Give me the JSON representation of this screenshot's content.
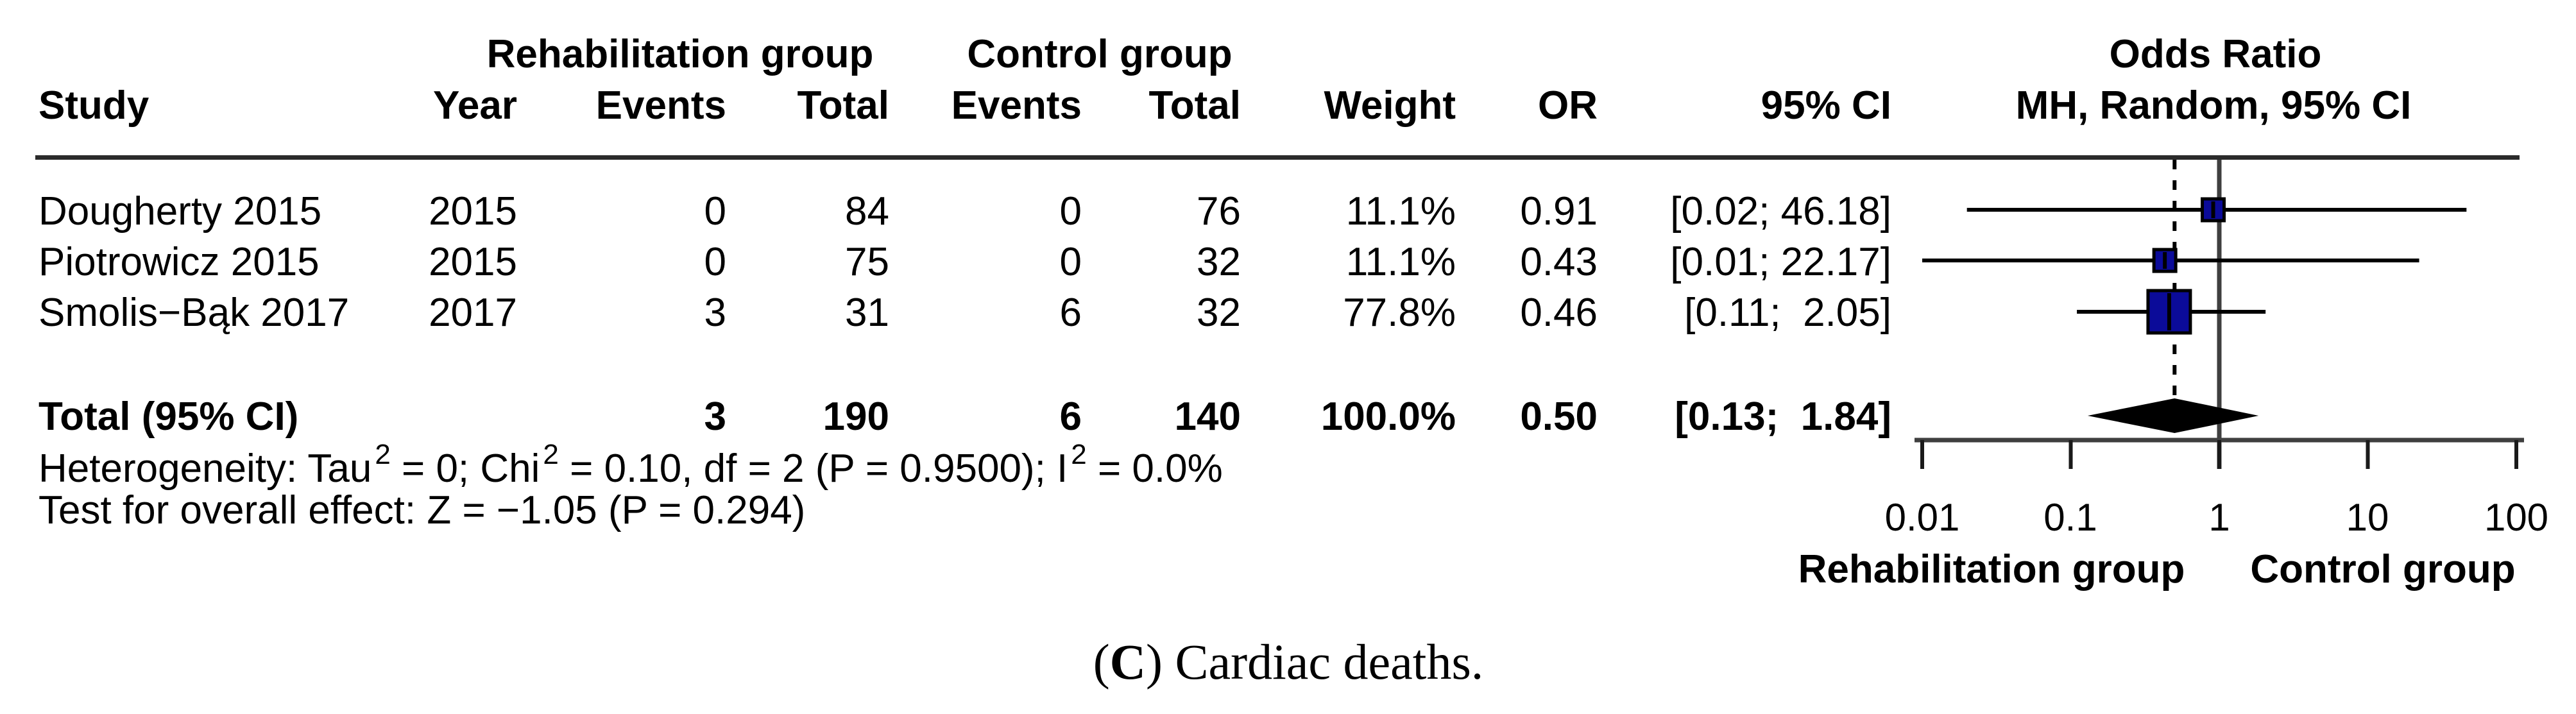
{
  "chart_data": {
    "type": "forest",
    "effect_measure": "Odds Ratio",
    "model_label": "MH, Random, 95% CI",
    "x_axis": {
      "scale": "log",
      "ticks": [
        0.01,
        0.1,
        1,
        10,
        100
      ],
      "tick_labels": [
        "0.01",
        "0.1",
        "1",
        "10",
        "100"
      ],
      "label_left": "Rehabilitation group",
      "label_right": "Control group"
    },
    "null_value": 1,
    "studies": [
      {
        "name": "Dougherty 2015",
        "or": 0.91,
        "ci_low": 0.02,
        "ci_high": 46.18,
        "weight_pct": 11.1
      },
      {
        "name": "Piotrowicz 2015",
        "or": 0.43,
        "ci_low": 0.01,
        "ci_high": 22.17,
        "weight_pct": 11.1
      },
      {
        "name": "Smolis−Bąk 2017",
        "or": 0.46,
        "ci_low": 0.11,
        "ci_high": 2.05,
        "weight_pct": 77.8
      }
    ],
    "pooled": {
      "or": 0.5,
      "ci_low": 0.13,
      "ci_high": 1.84,
      "weight_pct": 100.0
    },
    "square_color": "#0b0b99",
    "diamond_color": "#000000",
    "line_gray": "#3f3f3f"
  },
  "table": {
    "group_headers": {
      "rehab": "Rehabilitation group",
      "control": "Control group"
    },
    "headers": {
      "study": "Study",
      "year": "Year",
      "events": "Events",
      "total": "Total",
      "weight": "Weight",
      "or": "OR",
      "ci": "95% CI",
      "mh": "MH, Random, 95% CI"
    },
    "rows": [
      {
        "study": "Dougherty 2015",
        "year": "2015",
        "events_rehab": "0",
        "total_rehab": "84",
        "events_control": "0",
        "total_control": "76",
        "weight": "11.1%",
        "or": "0.91",
        "ci": "[0.02; 46.18]"
      },
      {
        "study": "Piotrowicz 2015",
        "year": "2015",
        "events_rehab": "0",
        "total_rehab": "75",
        "events_control": "0",
        "total_control": "32",
        "weight": "11.1%",
        "or": "0.43",
        "ci": "[0.01; 22.17]"
      },
      {
        "study": "Smolis−Bąk 2017",
        "year": "2017",
        "events_rehab": "3",
        "total_rehab": "31",
        "events_control": "6",
        "total_control": "32",
        "weight": "77.8%",
        "or": "0.46",
        "ci": "[0.11;  2.05]"
      }
    ],
    "total_row": {
      "label": "Total (95% CI)",
      "events_rehab": "3",
      "total_rehab": "190",
      "events_control": "6",
      "total_control": "140",
      "weight": "100.0%",
      "or": "0.50",
      "ci": "[0.13;  1.84]"
    }
  },
  "notes": {
    "het_1": "Heterogeneity: Tau",
    "het_sup1": "2",
    "het_2": " = 0; Chi",
    "het_sup2": "2",
    "het_3": " = 0.10, df = 2 (P = 0.9500); I",
    "het_sup3": "2",
    "het_4": " = 0.0%",
    "overall_effect": "Test for overall effect: Z = −1.05 (P = 0.294)"
  },
  "caption": {
    "prefix": "(",
    "label": "C",
    "suffix": ") Cardiac deaths."
  }
}
